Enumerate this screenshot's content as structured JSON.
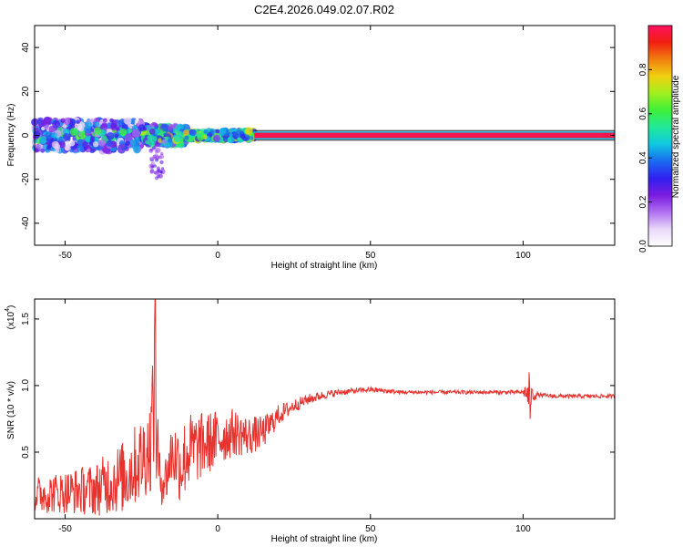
{
  "title": "C2E4.2026.049.02.07.R02",
  "colors": {
    "snr_line": "#e8322e",
    "axis": "#000000",
    "spectrogram_line": "#e8322e",
    "colormap": [
      "#ffffff",
      "#e8d8f8",
      "#b070f0",
      "#7a1be0",
      "#3020f0",
      "#1a6af0",
      "#10c8e0",
      "#22e89a",
      "#3cf03a",
      "#a0f020",
      "#f0d010",
      "#f08010",
      "#f02010",
      "#ff1060"
    ]
  },
  "chart_data": [
    {
      "type": "heatmap",
      "name": "spectrogram",
      "xlabel": "Height of straight line (km)",
      "ylabel": "Frequency (Hz)",
      "xlim": [
        -60,
        130
      ],
      "ylim": [
        -50,
        50
      ],
      "xticks": [
        -50,
        0,
        50,
        100
      ],
      "yticks": [
        -40,
        -20,
        0,
        20,
        40
      ],
      "xtick_labels": [
        "-50",
        "0",
        "50",
        "100"
      ],
      "ytick_labels": [
        "-40",
        "-20",
        "0",
        "20",
        "40"
      ],
      "line": {
        "x_start": 12,
        "x_end": 130,
        "frequency": 0,
        "amplitude": 0.98,
        "band_halfwidth": 1.2
      },
      "scatter": {
        "x_range": [
          -60,
          12
        ],
        "freq_spread": 7,
        "description_free": true
      },
      "colorbar": {
        "label": "Normalized spectral amplitude",
        "range": [
          0,
          1
        ],
        "ticks": [
          0.0,
          0.2,
          0.4,
          0.6,
          0.8
        ],
        "tick_labels": [
          "0.0",
          "0.2",
          "0.4",
          "0.6",
          "0.8"
        ]
      }
    },
    {
      "type": "line",
      "name": "snr",
      "xlabel": "Height of straight line (km)",
      "ylabel": "SNR (10 * v/v)",
      "scale_label": "(x10",
      "scale_exponent": "4",
      "scale_close": ")",
      "xlim": [
        -60,
        130
      ],
      "ylim": [
        0,
        1.65
      ],
      "xticks": [
        -50,
        0,
        50,
        100
      ],
      "yticks": [
        0.5,
        1.0,
        1.5
      ],
      "xtick_labels": [
        "-50",
        "0",
        "50",
        "100"
      ],
      "ytick_labels": [
        "0.5",
        "1.0",
        "1.5"
      ],
      "envelope": {
        "x": [
          -60,
          -50,
          -40,
          -35,
          -30,
          -28,
          -25,
          -22,
          -21,
          -20,
          -19,
          -17,
          -15,
          -12,
          -10,
          -5,
          0,
          5,
          10,
          15,
          20,
          25,
          30,
          35,
          40,
          45,
          50,
          55,
          60,
          70,
          80,
          90,
          100,
          101,
          102,
          103,
          105,
          110,
          120,
          130
        ],
        "y": [
          0.18,
          0.2,
          0.22,
          0.28,
          0.32,
          0.38,
          0.45,
          0.55,
          0.95,
          0.6,
          0.3,
          0.3,
          0.5,
          0.4,
          0.5,
          0.55,
          0.6,
          0.65,
          0.62,
          0.65,
          0.78,
          0.85,
          0.9,
          0.93,
          0.95,
          0.96,
          0.97,
          0.96,
          0.95,
          0.95,
          0.95,
          0.95,
          0.95,
          0.95,
          0.9,
          0.93,
          0.93,
          0.92,
          0.92,
          0.92
        ],
        "noise": [
          0.14,
          0.16,
          0.2,
          0.25,
          0.28,
          0.3,
          0.32,
          0.35,
          0.6,
          0.45,
          0.2,
          0.2,
          0.25,
          0.3,
          0.3,
          0.25,
          0.22,
          0.18,
          0.15,
          0.12,
          0.08,
          0.05,
          0.04,
          0.03,
          0.025,
          0.02,
          0.02,
          0.02,
          0.015,
          0.015,
          0.015,
          0.015,
          0.015,
          0.08,
          0.12,
          0.06,
          0.015,
          0.015,
          0.015,
          0.015
        ]
      },
      "spikes": [
        {
          "x": -20.5,
          "y": 1.65
        },
        {
          "x": 102,
          "y": 1.1
        },
        {
          "x": 102.3,
          "y": 0.75
        }
      ]
    }
  ]
}
